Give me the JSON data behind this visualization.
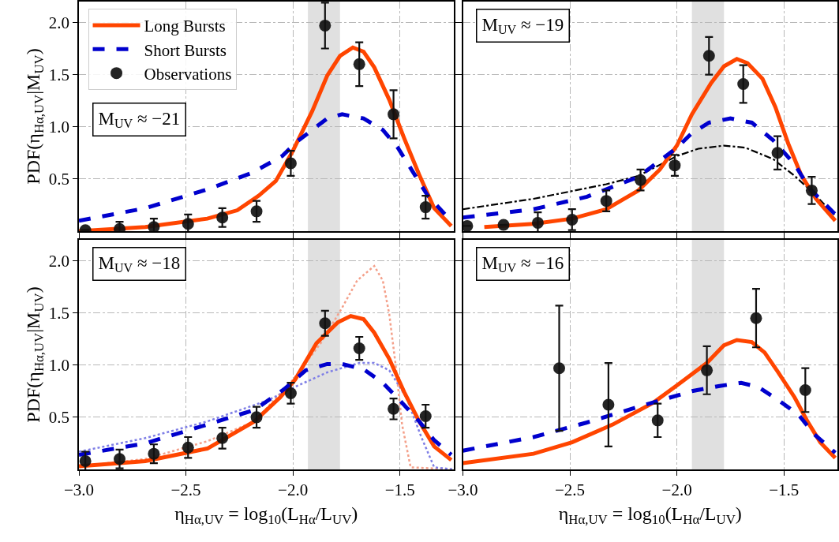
{
  "chart_data": [
    {
      "type": "line",
      "ylabel": "PDF(η$_{Hα,UV}$|M$_{UV}$)",
      "xlim": [
        -3.0,
        -1.25
      ],
      "ylim": [
        0,
        2.2
      ],
      "xticks": [
        {
          "value": -3.0,
          "label": null
        },
        {
          "value": -2.5,
          "label": null
        },
        {
          "value": -2.0,
          "label": null
        },
        {
          "value": -1.5,
          "label": null
        }
      ],
      "yticks": [
        {
          "value": 0.5,
          "label": "0.5"
        },
        {
          "value": 1.0,
          "label": "1.0"
        },
        {
          "value": 1.5,
          "label": "1.5"
        },
        {
          "value": 2.0,
          "label": "2.0"
        }
      ],
      "tick_labels": "y",
      "grid": true,
      "legend": "top left",
      "annotations": [
        "M$_{UV}$ ≈ −21"
      ],
      "bands": [
        {
          "axis": "x",
          "from": -1.93,
          "to": -1.78,
          "color": "#e0e0e0"
        }
      ],
      "series": [
        {
          "name": "Long Bursts",
          "type": "line",
          "color": "#ff4500",
          "line_style": "solid",
          "marker": "none",
          "x": [
            -3.0,
            -2.69,
            -2.4,
            -2.26,
            -2.16,
            -2.08,
            -2.0,
            -1.91,
            -1.84,
            -1.78,
            -1.72,
            -1.67,
            -1.62,
            -1.55,
            -1.48,
            -1.41,
            -1.34,
            -1.26
          ],
          "values": [
            0.0,
            0.04,
            0.12,
            0.2,
            0.34,
            0.48,
            0.77,
            1.15,
            1.49,
            1.68,
            1.76,
            1.72,
            1.57,
            1.26,
            0.89,
            0.54,
            0.22,
            0.05
          ]
        },
        {
          "name": "Short Bursts",
          "type": "line",
          "color": "#0000cd",
          "line_style": "dashed",
          "marker": "none",
          "x": [
            -3.0,
            -2.69,
            -2.4,
            -2.19,
            -2.05,
            -1.98,
            -1.91,
            -1.84,
            -1.77,
            -1.67,
            -1.58,
            -1.51,
            -1.44,
            -1.37,
            -1.28,
            -1.25
          ],
          "values": [
            0.1,
            0.22,
            0.4,
            0.56,
            0.72,
            0.86,
            0.97,
            1.08,
            1.12,
            1.08,
            0.97,
            0.8,
            0.57,
            0.34,
            0.14,
            0.1
          ]
        },
        {
          "name": "Observations",
          "type": "scatter",
          "color": "#111111",
          "marker": "circle",
          "x": [
            -2.97,
            -2.81,
            -2.65,
            -2.49,
            -2.33,
            -2.17,
            -2.01,
            -1.85,
            -1.69,
            -1.53,
            -1.38
          ],
          "values": [
            0.01,
            0.02,
            0.04,
            0.07,
            0.13,
            0.19,
            0.65,
            1.97,
            1.6,
            1.12,
            0.23
          ],
          "errors": [
            null,
            0.07,
            0.08,
            0.09,
            0.09,
            0.1,
            0.12,
            0.22,
            0.21,
            0.23,
            0.11
          ]
        }
      ]
    },
    {
      "type": "line",
      "xlim": [
        -3.0,
        -1.25
      ],
      "ylim": [
        0,
        2.2
      ],
      "xticks": [
        {
          "value": -3.0,
          "label": null
        },
        {
          "value": -2.5,
          "label": null
        },
        {
          "value": -2.0,
          "label": null
        },
        {
          "value": -1.5,
          "label": null
        }
      ],
      "yticks": [
        {
          "value": 0.5,
          "label": null
        },
        {
          "value": 1.0,
          "label": null
        },
        {
          "value": 1.5,
          "label": null
        },
        {
          "value": 2.0,
          "label": null
        }
      ],
      "tick_labels": false,
      "grid": true,
      "annotations": [
        "M$_{UV}$ ≈ −19"
      ],
      "bands": [
        {
          "axis": "x",
          "from": -1.93,
          "to": -1.78,
          "color": "#e0e0e0"
        }
      ],
      "series": [
        {
          "type": "line",
          "color": "#000000",
          "line_style": "dashdot",
          "marker": "none",
          "x": [
            -3.0,
            -2.67,
            -2.33,
            -2.18,
            -2.0,
            -1.9,
            -1.78,
            -1.68,
            -1.55,
            -1.45,
            -1.37,
            -1.26
          ],
          "values": [
            0.21,
            0.31,
            0.45,
            0.53,
            0.72,
            0.79,
            0.82,
            0.8,
            0.69,
            0.53,
            0.38,
            0.15
          ]
        },
        {
          "type": "line",
          "color": "#ff4500",
          "line_style": "solid",
          "marker": "none",
          "x": [
            -2.9,
            -2.67,
            -2.49,
            -2.33,
            -2.18,
            -2.08,
            -2.0,
            -1.93,
            -1.84,
            -1.78,
            -1.72,
            -1.67,
            -1.6,
            -1.54,
            -1.48,
            -1.42,
            -1.35,
            -1.26
          ],
          "values": [
            0.04,
            0.07,
            0.12,
            0.21,
            0.39,
            0.59,
            0.82,
            1.12,
            1.42,
            1.58,
            1.65,
            1.61,
            1.46,
            1.19,
            0.84,
            0.54,
            0.31,
            0.1
          ]
        },
        {
          "type": "line",
          "color": "#0000cd",
          "line_style": "dashed",
          "marker": "none",
          "x": [
            -3.0,
            -2.67,
            -2.42,
            -2.18,
            -2.0,
            -1.93,
            -1.85,
            -1.75,
            -1.65,
            -1.55,
            -1.45,
            -1.38,
            -1.26
          ],
          "values": [
            0.13,
            0.21,
            0.33,
            0.52,
            0.8,
            0.94,
            1.04,
            1.08,
            1.04,
            0.87,
            0.64,
            0.41,
            0.16
          ]
        },
        {
          "type": "scatter",
          "color": "#111111",
          "marker": "circle",
          "x": [
            -2.98,
            -2.81,
            -2.65,
            -2.49,
            -2.33,
            -2.17,
            -2.01,
            -1.85,
            -1.69,
            -1.53,
            -1.37
          ],
          "values": [
            0.05,
            0.06,
            0.08,
            0.11,
            0.29,
            0.49,
            0.63,
            1.68,
            1.41,
            0.75,
            0.39
          ],
          "errors": [
            null,
            null,
            0.1,
            0.1,
            0.1,
            0.1,
            0.1,
            0.18,
            0.18,
            0.16,
            0.13
          ]
        }
      ]
    },
    {
      "type": "line",
      "xlabel": "η$_{Hα,UV}$ = log$_{10}$(L$_{Hα}$/L$_{UV}$)",
      "ylabel": "PDF(η$_{Hα,UV}$|M$_{UV}$)",
      "xlim": [
        -3.0,
        -1.25
      ],
      "ylim": [
        0,
        2.2
      ],
      "xticks": [
        {
          "value": -3.0,
          "label": "−3.0"
        },
        {
          "value": -2.5,
          "label": "−2.5"
        },
        {
          "value": -2.0,
          "label": "−2.0"
        },
        {
          "value": -1.5,
          "label": "−1.5"
        }
      ],
      "yticks": [
        {
          "value": 0.5,
          "label": "0.5"
        },
        {
          "value": 1.0,
          "label": "1.0"
        },
        {
          "value": 1.5,
          "label": "1.5"
        },
        {
          "value": 2.0,
          "label": "2.0"
        }
      ],
      "grid": true,
      "annotations": [
        "M$_{UV}$ ≈ −18"
      ],
      "bands": [
        {
          "axis": "x",
          "from": -1.93,
          "to": -1.78,
          "color": "#e0e0e0"
        }
      ],
      "series": [
        {
          "type": "line",
          "color": "#f4a08a",
          "line_style": "dotted",
          "marker": "none",
          "x": [
            -3.0,
            -2.69,
            -2.4,
            -2.18,
            -2.0,
            -1.87,
            -1.77,
            -1.7,
            -1.62,
            -1.58,
            -1.55,
            -1.52,
            -1.49,
            -1.45,
            -1.25
          ],
          "values": [
            0.03,
            0.1,
            0.27,
            0.46,
            0.86,
            1.21,
            1.55,
            1.81,
            1.95,
            1.81,
            1.49,
            1.0,
            0.43,
            0.02,
            0.0
          ]
        },
        {
          "type": "line",
          "color": "#7f7fe6",
          "line_style": "dotted",
          "marker": "none",
          "x": [
            -3.0,
            -2.69,
            -2.4,
            -2.12,
            -1.98,
            -1.84,
            -1.69,
            -1.62,
            -1.55,
            -1.47,
            -1.4,
            -1.34,
            -1.25
          ],
          "values": [
            0.17,
            0.3,
            0.46,
            0.66,
            0.8,
            0.93,
            1.02,
            1.02,
            0.95,
            0.69,
            0.31,
            0.02,
            0.0
          ]
        },
        {
          "type": "line",
          "color": "#ff4500",
          "line_style": "solid",
          "marker": "none",
          "x": [
            -3.0,
            -2.69,
            -2.4,
            -2.18,
            -2.06,
            -1.99,
            -1.89,
            -1.79,
            -1.73,
            -1.67,
            -1.62,
            -1.55,
            -1.48,
            -1.41,
            -1.34,
            -1.26
          ],
          "values": [
            0.03,
            0.08,
            0.2,
            0.46,
            0.69,
            0.86,
            1.21,
            1.41,
            1.47,
            1.44,
            1.31,
            1.06,
            0.74,
            0.46,
            0.22,
            0.09
          ]
        },
        {
          "type": "line",
          "color": "#0000cd",
          "line_style": "dashed",
          "marker": "none",
          "x": [
            -3.0,
            -2.69,
            -2.4,
            -2.18,
            -2.04,
            -1.94,
            -1.84,
            -1.77,
            -1.67,
            -1.58,
            -1.5,
            -1.41,
            -1.34,
            -1.26
          ],
          "values": [
            0.14,
            0.25,
            0.43,
            0.57,
            0.77,
            0.95,
            1.01,
            1.01,
            0.96,
            0.83,
            0.66,
            0.46,
            0.28,
            0.14
          ]
        },
        {
          "type": "scatter",
          "color": "#111111",
          "marker": "circle",
          "x": [
            -2.97,
            -2.81,
            -2.65,
            -2.49,
            -2.33,
            -2.17,
            -2.01,
            -1.85,
            -1.69,
            -1.53,
            -1.38
          ],
          "values": [
            0.08,
            0.1,
            0.15,
            0.21,
            0.3,
            0.5,
            0.73,
            1.4,
            1.16,
            0.58,
            0.51
          ],
          "errors": [
            0.09,
            0.09,
            0.09,
            0.1,
            0.1,
            0.1,
            0.1,
            0.12,
            0.11,
            0.1,
            0.11
          ]
        }
      ]
    },
    {
      "type": "line",
      "xlabel": "η$_{Hα,UV}$ = log$_{10}$(L$_{Hα}$/L$_{UV}$)",
      "xlim": [
        -3.0,
        -1.25
      ],
      "ylim": [
        0,
        2.2
      ],
      "xticks": [
        {
          "value": -3.0,
          "label": "−3.0"
        },
        {
          "value": -2.5,
          "label": "−2.5"
        },
        {
          "value": -2.0,
          "label": "−2.0"
        },
        {
          "value": -1.5,
          "label": "−1.5"
        }
      ],
      "yticks": [
        {
          "value": 0.5,
          "label": null
        },
        {
          "value": 1.0,
          "label": null
        },
        {
          "value": 1.5,
          "label": null
        },
        {
          "value": 2.0,
          "label": null
        }
      ],
      "tick_labels": "x",
      "grid": true,
      "annotations": [
        "M$_{UV}$ ≈ −16"
      ],
      "bands": [
        {
          "axis": "x",
          "from": -1.93,
          "to": -1.78,
          "color": "#e0e0e0"
        }
      ],
      "series": [
        {
          "type": "line",
          "color": "#ff4500",
          "line_style": "solid",
          "marker": "none",
          "x": [
            -3.0,
            -2.67,
            -2.49,
            -2.3,
            -2.11,
            -1.99,
            -1.86,
            -1.78,
            -1.72,
            -1.65,
            -1.59,
            -1.53,
            -1.45,
            -1.39,
            -1.33,
            -1.26
          ],
          "values": [
            0.06,
            0.15,
            0.26,
            0.43,
            0.64,
            0.82,
            1.02,
            1.19,
            1.24,
            1.22,
            1.12,
            0.94,
            0.69,
            0.46,
            0.26,
            0.11
          ]
        },
        {
          "type": "line",
          "color": "#0000cd",
          "line_style": "dashed",
          "marker": "none",
          "x": [
            -3.0,
            -2.67,
            -2.42,
            -2.18,
            -1.93,
            -1.8,
            -1.7,
            -1.62,
            -1.53,
            -1.43,
            -1.36,
            -1.26
          ],
          "values": [
            0.18,
            0.31,
            0.45,
            0.6,
            0.75,
            0.8,
            0.83,
            0.79,
            0.67,
            0.52,
            0.34,
            0.16
          ]
        },
        {
          "type": "scatter",
          "color": "#111111",
          "marker": "circle",
          "x": [
            -2.55,
            -2.32,
            -2.09,
            -1.86,
            -1.63,
            -1.4
          ],
          "values": [
            0.97,
            0.62,
            0.47,
            0.95,
            1.45,
            0.76
          ],
          "errors": [
            0.6,
            0.4,
            0.16,
            0.23,
            0.28,
            0.21
          ]
        }
      ]
    }
  ]
}
